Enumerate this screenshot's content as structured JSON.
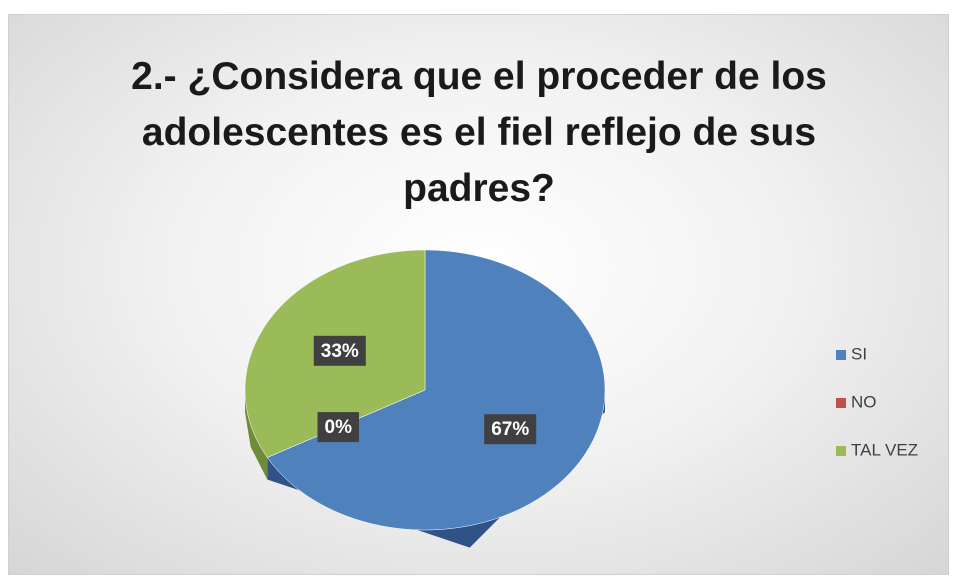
{
  "chart_data": {
    "type": "pie",
    "title": "2.- ¿Considera que el proceder de los adolescentes es el fiel reflejo de sus padres?",
    "categories": [
      "SI",
      "NO",
      "TAL VEZ"
    ],
    "values": [
      67,
      0,
      33
    ],
    "value_labels": [
      "67%",
      "0%",
      "33%"
    ],
    "colors": [
      "#4f81bd",
      "#c0504d",
      "#9bbb59"
    ],
    "side_colors": [
      "#2f5287",
      "#8a2f2d",
      "#6f8a3a"
    ],
    "legend": "right"
  }
}
